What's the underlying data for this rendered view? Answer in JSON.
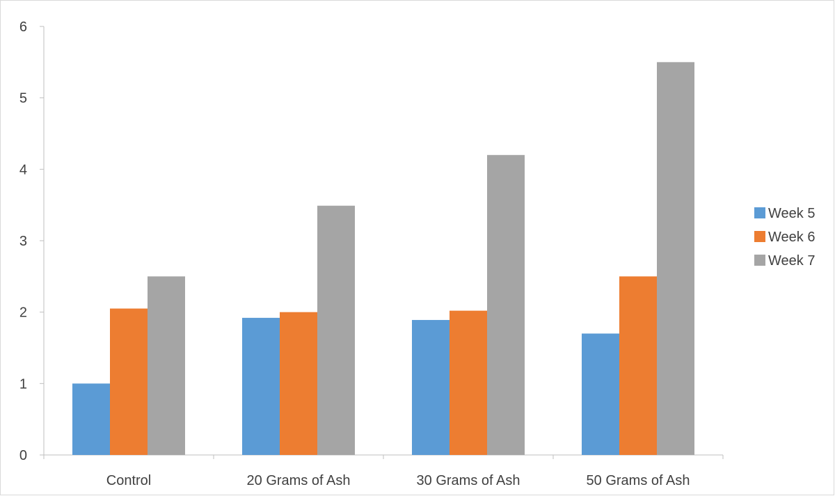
{
  "chart_data": {
    "type": "bar",
    "title": "",
    "xlabel": "",
    "ylabel": "",
    "categories": [
      "Control",
      "20 Grams of Ash",
      "30 Grams of Ash",
      "50 Grams of Ash"
    ],
    "series": [
      {
        "name": "Week 5",
        "color": "#5b9bd5",
        "values": [
          1.0,
          1.92,
          1.89,
          1.7
        ]
      },
      {
        "name": "Week 6",
        "color": "#ed7d31",
        "values": [
          2.05,
          2.0,
          2.02,
          2.5
        ]
      },
      {
        "name": "Week 7",
        "color": "#a5a5a5",
        "values": [
          2.5,
          3.49,
          4.2,
          5.5
        ]
      }
    ],
    "ylim": [
      0,
      6
    ],
    "yticks": [
      "0",
      "1",
      "2",
      "3",
      "4",
      "5",
      "6"
    ],
    "grid": false,
    "legend_position": "right"
  }
}
